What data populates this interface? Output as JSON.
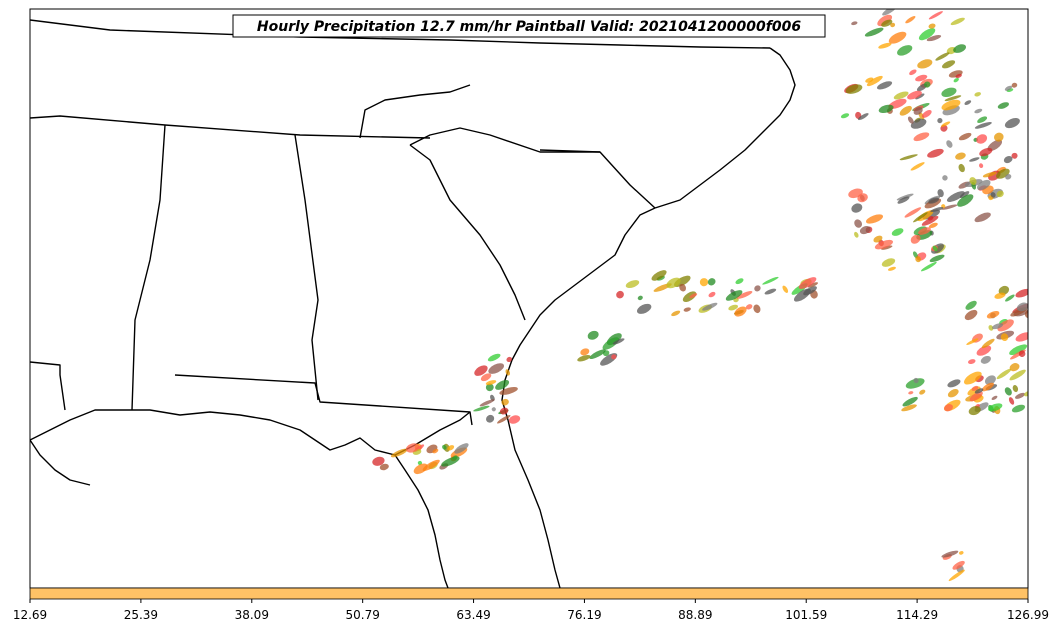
{
  "figure": {
    "title": "Hourly Precipitation 12.7 mm/hr Paintball Valid: 2021041200000f006"
  },
  "colorbar": {
    "color": "#ffc266",
    "ticks": [
      "12.69",
      "25.39",
      "38.09",
      "50.79",
      "63.49",
      "76.19",
      "88.89",
      "101.59",
      "114.29",
      "126.99"
    ]
  },
  "map": {
    "region": "Southeastern United States and western Atlantic",
    "boundary_color": "#000000",
    "ocean_color": "#ffffff"
  },
  "paintball_colors": [
    "#d62728",
    "#ff7f0e",
    "#2ca02c",
    "#8c564b",
    "#7f7f7f",
    "#bcbd22",
    "#ffa500",
    "#32cd32",
    "#ff4d4d",
    "#555555",
    "#808000",
    "#228b22",
    "#ff6347",
    "#a0522d",
    "#e69500"
  ]
}
